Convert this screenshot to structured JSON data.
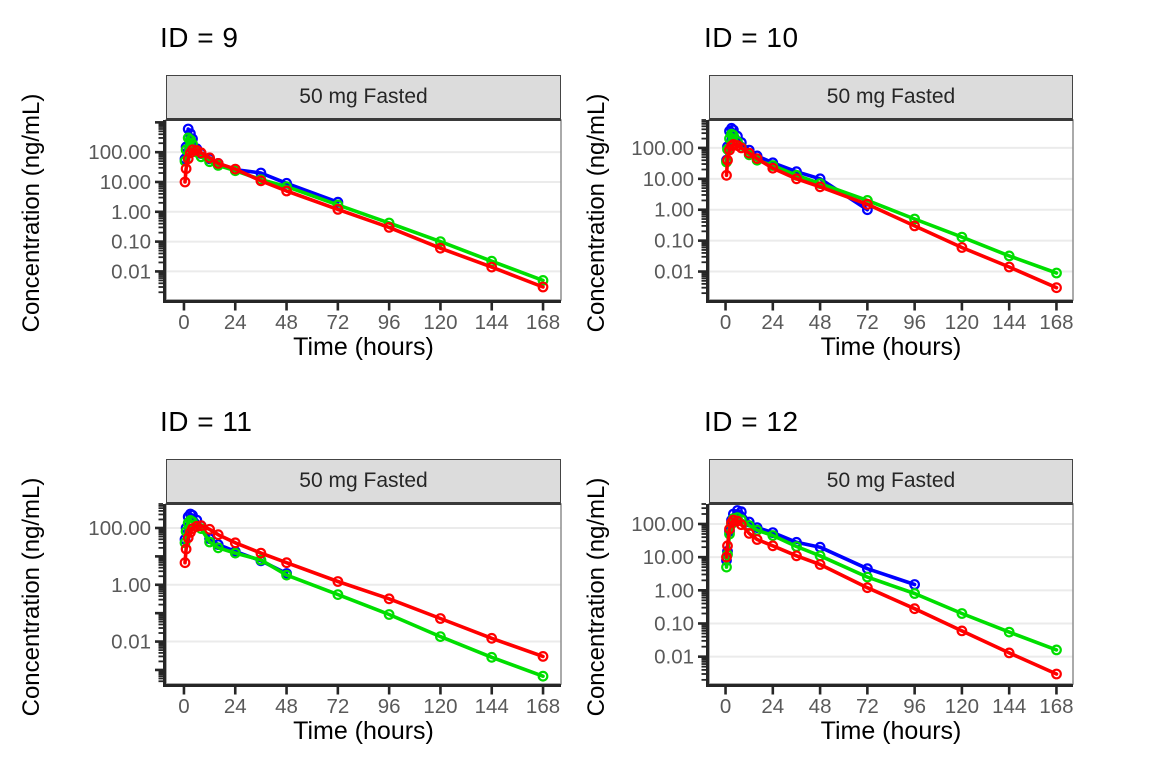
{
  "styles": {
    "background": "#FFFFFF",
    "grid_color": "#EBEBEB",
    "axis_color": "#262626",
    "tick_label_color": "#595959",
    "title_color": "#000000",
    "strip_bg": "#DCDCDC",
    "strip_border": "#444444",
    "panel_border": "#8E8E8E",
    "series_blue": "#0000FF",
    "series_green": "#00DE00",
    "series_red": "#FF0000"
  },
  "chart_data": [
    {
      "type": "line",
      "panel_title": "ID = 9",
      "strip_label": "50 mg Fasted",
      "xlabel": "Time (hours)",
      "ylabel": "Concentration (ng/mL)",
      "x_breaks": [
        0,
        24,
        48,
        72,
        96,
        120,
        144,
        168
      ],
      "xlim": [
        0,
        168
      ],
      "y_scale": "log10",
      "y_breaks": [
        {
          "value": 100,
          "label": "100.00"
        },
        {
          "value": 10,
          "label": "10.00"
        },
        {
          "value": 1,
          "label": "1.00"
        },
        {
          "value": 0.1,
          "label": "0.10"
        },
        {
          "value": 0.01,
          "label": "0.01"
        }
      ],
      "ylim": [
        0.0011,
        1200
      ],
      "legend": "none",
      "marker": "open-circle",
      "series": [
        {
          "name": "blue",
          "color": "#0000FF",
          "points": [
            [
              0.5,
              60
            ],
            [
              1,
              150
            ],
            [
              2,
              600
            ],
            [
              3,
              420
            ],
            [
              4,
              280
            ],
            [
              6,
              130
            ],
            [
              8,
              90
            ],
            [
              12,
              60
            ],
            [
              16,
              42
            ],
            [
              24,
              26
            ],
            [
              36,
              20
            ],
            [
              48,
              9
            ],
            [
              72,
              2.1
            ]
          ]
        },
        {
          "name": "green",
          "color": "#00DE00",
          "points": [
            [
              0.5,
              50
            ],
            [
              1,
              120
            ],
            [
              2,
              300
            ],
            [
              3,
              260
            ],
            [
              4,
              190
            ],
            [
              6,
              100
            ],
            [
              8,
              70
            ],
            [
              12,
              48
            ],
            [
              16,
              36
            ],
            [
              24,
              24
            ],
            [
              36,
              12
            ],
            [
              48,
              7
            ],
            [
              72,
              1.7
            ],
            [
              96,
              0.42
            ],
            [
              120,
              0.1
            ],
            [
              144,
              0.022
            ],
            [
              168,
              0.005
            ]
          ]
        },
        {
          "name": "red",
          "color": "#FF0000",
          "points": [
            [
              0.5,
              10
            ],
            [
              1,
              28
            ],
            [
              2,
              60
            ],
            [
              3,
              95
            ],
            [
              4,
              120
            ],
            [
              6,
              115
            ],
            [
              8,
              95
            ],
            [
              12,
              65
            ],
            [
              16,
              42
            ],
            [
              24,
              27
            ],
            [
              36,
              11
            ],
            [
              48,
              5
            ],
            [
              72,
              1.2
            ],
            [
              96,
              0.3
            ],
            [
              120,
              0.06
            ],
            [
              144,
              0.014
            ],
            [
              168,
              0.003
            ]
          ]
        }
      ]
    },
    {
      "type": "line",
      "panel_title": "ID = 10",
      "strip_label": "50 mg Fasted",
      "xlabel": "Time (hours)",
      "ylabel": "Concentration (ng/mL)",
      "x_breaks": [
        0,
        24,
        48,
        72,
        96,
        120,
        144,
        168
      ],
      "xlim": [
        0,
        168
      ],
      "y_scale": "log10",
      "y_breaks": [
        {
          "value": 100,
          "label": "100.00"
        },
        {
          "value": 10,
          "label": "10.00"
        },
        {
          "value": 1,
          "label": "1.00"
        },
        {
          "value": 0.1,
          "label": "0.10"
        },
        {
          "value": 0.01,
          "label": "0.01"
        }
      ],
      "ylim": [
        0.0012,
        800
      ],
      "legend": "none",
      "marker": "open-circle",
      "series": [
        {
          "name": "blue",
          "color": "#0000FF",
          "points": [
            [
              0.5,
              40
            ],
            [
              1,
              110
            ],
            [
              2,
              350
            ],
            [
              3,
              430
            ],
            [
              4,
              380
            ],
            [
              6,
              240
            ],
            [
              8,
              150
            ],
            [
              12,
              85
            ],
            [
              16,
              55
            ],
            [
              24,
              33
            ],
            [
              36,
              17
            ],
            [
              48,
              10
            ],
            [
              72,
              1.0
            ]
          ]
        },
        {
          "name": "green",
          "color": "#00DE00",
          "points": [
            [
              0.5,
              35
            ],
            [
              1,
              90
            ],
            [
              2,
              200
            ],
            [
              3,
              280
            ],
            [
              4,
              255
            ],
            [
              6,
              160
            ],
            [
              8,
              105
            ],
            [
              12,
              60
            ],
            [
              16,
              40
            ],
            [
              24,
              27
            ],
            [
              36,
              13
            ],
            [
              48,
              7
            ],
            [
              72,
              2.0
            ],
            [
              96,
              0.5
            ],
            [
              120,
              0.13
            ],
            [
              144,
              0.032
            ],
            [
              168,
              0.009
            ]
          ]
        },
        {
          "name": "red",
          "color": "#FF0000",
          "points": [
            [
              0.5,
              13
            ],
            [
              1,
              40
            ],
            [
              2,
              85
            ],
            [
              3,
              115
            ],
            [
              4,
              130
            ],
            [
              6,
              120
            ],
            [
              8,
              100
            ],
            [
              12,
              68
            ],
            [
              16,
              45
            ],
            [
              24,
              22
            ],
            [
              36,
              10
            ],
            [
              48,
              5.5
            ],
            [
              72,
              1.5
            ],
            [
              96,
              0.3
            ],
            [
              120,
              0.06
            ],
            [
              144,
              0.014
            ],
            [
              168,
              0.003
            ]
          ]
        }
      ]
    },
    {
      "type": "line",
      "panel_title": "ID = 11",
      "strip_label": "50 mg Fasted",
      "xlabel": "Time (hours)",
      "ylabel": "Concentration (ng/mL)",
      "x_breaks": [
        0,
        24,
        48,
        72,
        96,
        120,
        144,
        168
      ],
      "xlim": [
        0,
        168
      ],
      "y_scale": "log10",
      "y_breaks": [
        {
          "value": 100,
          "label": "100.00"
        },
        {
          "value": 1,
          "label": "1.00"
        },
        {
          "value": 0.01,
          "label": "0.01"
        }
      ],
      "ylim": [
        0.00032,
        700
      ],
      "legend": "none",
      "marker": "open-circle",
      "series": [
        {
          "name": "blue",
          "color": "#0000FF",
          "points": [
            [
              0.5,
              40
            ],
            [
              1,
              100
            ],
            [
              2,
              250
            ],
            [
              3,
              310
            ],
            [
              4,
              280
            ],
            [
              6,
              190
            ],
            [
              8,
              120
            ],
            [
              12,
              42
            ],
            [
              16,
              26
            ],
            [
              24,
              15
            ],
            [
              36,
              7
            ],
            [
              48,
              2.5
            ]
          ]
        },
        {
          "name": "green",
          "color": "#00DE00",
          "points": [
            [
              0.5,
              30
            ],
            [
              1,
              75
            ],
            [
              2,
              150
            ],
            [
              3,
              185
            ],
            [
              4,
              165
            ],
            [
              6,
              115
            ],
            [
              8,
              95
            ],
            [
              12,
              32
            ],
            [
              16,
              20
            ],
            [
              24,
              13
            ],
            [
              36,
              7.5
            ],
            [
              48,
              2.2
            ],
            [
              72,
              0.45
            ],
            [
              96,
              0.09
            ],
            [
              120,
              0.015
            ],
            [
              144,
              0.0028
            ],
            [
              168,
              0.0006
            ]
          ]
        },
        {
          "name": "red",
          "color": "#FF0000",
          "points": [
            [
              0.5,
              6
            ],
            [
              1,
              18
            ],
            [
              2,
              45
            ],
            [
              3,
              70
            ],
            [
              4,
              95
            ],
            [
              6,
              115
            ],
            [
              8,
              120
            ],
            [
              12,
              90
            ],
            [
              16,
              58
            ],
            [
              24,
              30
            ],
            [
              36,
              13
            ],
            [
              48,
              6
            ],
            [
              72,
              1.3
            ],
            [
              96,
              0.32
            ],
            [
              120,
              0.065
            ],
            [
              144,
              0.013
            ],
            [
              168,
              0.003
            ]
          ]
        }
      ]
    },
    {
      "type": "line",
      "panel_title": "ID = 12",
      "strip_label": "50 mg Fasted",
      "xlabel": "Time (hours)",
      "ylabel": "Concentration (ng/mL)",
      "x_breaks": [
        0,
        24,
        48,
        72,
        96,
        120,
        144,
        168
      ],
      "xlim": [
        0,
        168
      ],
      "y_scale": "log10",
      "y_breaks": [
        {
          "value": 100,
          "label": "100.00"
        },
        {
          "value": 10,
          "label": "10.00"
        },
        {
          "value": 1,
          "label": "1.00"
        },
        {
          "value": 0.1,
          "label": "0.10"
        },
        {
          "value": 0.01,
          "label": "0.01"
        }
      ],
      "ylim": [
        0.0015,
        400
      ],
      "legend": "none",
      "marker": "open-circle",
      "series": [
        {
          "name": "blue",
          "color": "#0000FF",
          "points": [
            [
              0.5,
              8
            ],
            [
              1,
              15
            ],
            [
              2,
              60
            ],
            [
              3,
              130
            ],
            [
              4,
              200
            ],
            [
              6,
              255
            ],
            [
              8,
              235
            ],
            [
              12,
              115
            ],
            [
              16,
              78
            ],
            [
              24,
              55
            ],
            [
              36,
              28
            ],
            [
              48,
              20
            ],
            [
              72,
              4.5
            ],
            [
              96,
              1.5
            ]
          ]
        },
        {
          "name": "green",
          "color": "#00DE00",
          "points": [
            [
              0.5,
              5
            ],
            [
              1,
              12
            ],
            [
              2,
              50
            ],
            [
              3,
              100
            ],
            [
              4,
              145
            ],
            [
              6,
              155
            ],
            [
              8,
              135
            ],
            [
              12,
              90
            ],
            [
              16,
              65
            ],
            [
              24,
              45
            ],
            [
              36,
              21
            ],
            [
              48,
              11
            ],
            [
              72,
              2.5
            ],
            [
              96,
              0.8
            ],
            [
              120,
              0.2
            ],
            [
              144,
              0.055
            ],
            [
              168,
              0.016
            ]
          ]
        },
        {
          "name": "red",
          "color": "#FF0000",
          "points": [
            [
              0.5,
              10
            ],
            [
              1,
              22
            ],
            [
              2,
              70
            ],
            [
              3,
              110
            ],
            [
              4,
              132
            ],
            [
              6,
              122
            ],
            [
              8,
              95
            ],
            [
              12,
              52
            ],
            [
              16,
              34
            ],
            [
              24,
              22
            ],
            [
              36,
              11
            ],
            [
              48,
              6
            ],
            [
              72,
              1.2
            ],
            [
              96,
              0.28
            ],
            [
              120,
              0.06
            ],
            [
              144,
              0.013
            ],
            [
              168,
              0.003
            ]
          ]
        }
      ]
    }
  ]
}
